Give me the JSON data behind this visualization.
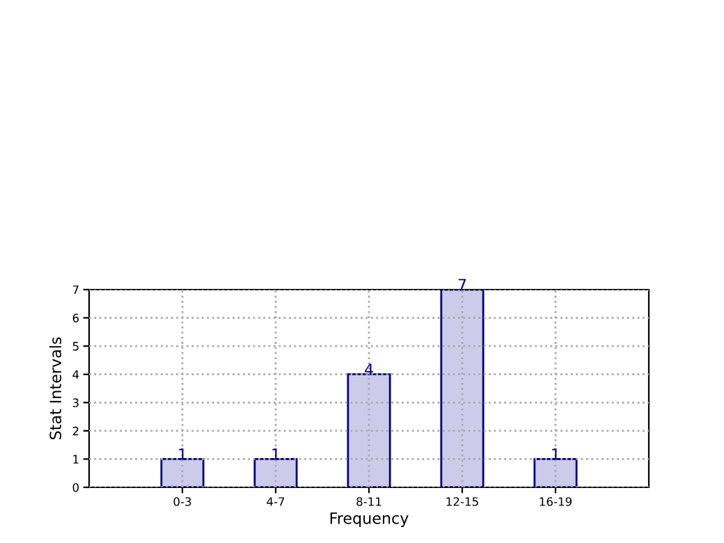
{
  "chart_data": {
    "type": "bar",
    "xlabel": "Frequency",
    "ylabel": "Stat Intervals",
    "categories": [
      "0-3",
      "4-7",
      "8-11",
      "12-15",
      "16-19"
    ],
    "values": [
      1,
      1,
      4,
      7,
      1
    ],
    "color": "#ccccea",
    "ylim": [
      0,
      7
    ],
    "yticks": [
      0,
      1,
      2,
      3,
      4,
      5,
      6,
      7
    ],
    "grid": true,
    "data_labels": true
  }
}
